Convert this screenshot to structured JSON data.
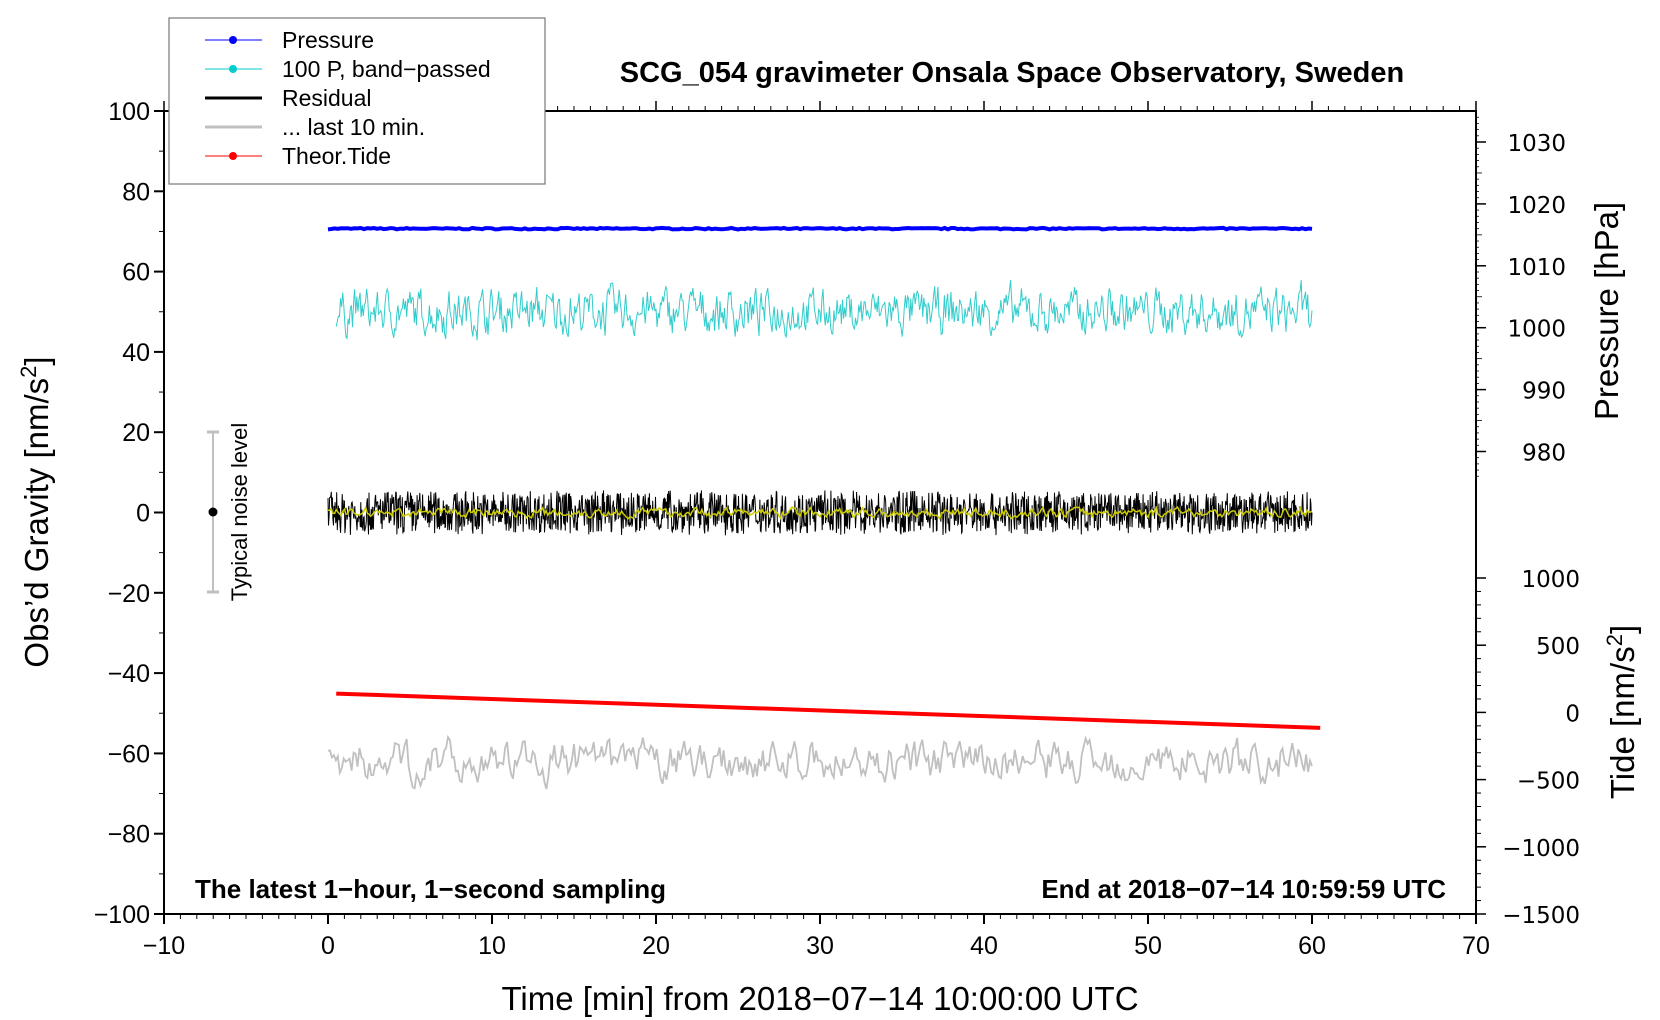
{
  "chart_data": {
    "type": "line",
    "title": "SCG_054 gravimeter Onsala Space Observatory, Sweden",
    "xlabel": "Time [min] from 2018−07−14 10:00:00 UTC",
    "ylabel": "Obs’d Gravity [nm/s",
    "ylabel_sup": "2",
    "ylabel_end": "]",
    "y2label": "Pressure [hPa]",
    "y3label": "Tide [nm/s",
    "y3label_sup": "2",
    "y3label_end": "]",
    "xlim": [
      -10,
      70
    ],
    "ylim": [
      -100,
      100
    ],
    "pressure_ticks": [
      980,
      990,
      1000,
      1010,
      1020,
      1030
    ],
    "tide_ticks": [
      -1500,
      -1000,
      -500,
      0,
      500,
      1000
    ],
    "x_ticks": [
      -10,
      0,
      10,
      20,
      30,
      40,
      50,
      60,
      70
    ],
    "y_ticks": [
      -100,
      -80,
      -60,
      -40,
      -20,
      0,
      20,
      40,
      60,
      80,
      100
    ],
    "x_tick_labels": [
      "−10",
      "0",
      "10",
      "20",
      "30",
      "40",
      "50",
      "60",
      "70"
    ],
    "y_tick_labels": [
      "−100",
      "−80",
      "−60",
      "−40",
      "−20",
      "0",
      "20",
      "40",
      "60",
      "80",
      "100"
    ],
    "tide_tick_labels": [
      "−1500",
      "−1000",
      "−500",
      "0",
      "500",
      "1000"
    ],
    "legend": {
      "placement": "top-left",
      "entries": [
        {
          "label": "Pressure",
          "color": "#0000ff",
          "marker": true
        },
        {
          "label": "100 P, band−passed",
          "color": "#00cccc",
          "marker": true
        },
        {
          "label": "Residual",
          "color": "#000000",
          "marker": false
        },
        {
          "label": "... last 10 min.",
          "color": "#c0c0c0",
          "marker": false
        },
        {
          "label": "Theor.Tide",
          "color": "#ff0000",
          "marker": true
        }
      ]
    },
    "series": [
      {
        "name": "Pressure",
        "axis": "pressure_hPa",
        "x_range": [
          0,
          60
        ],
        "mean": 1016,
        "noise": 0.1,
        "color": "#0000ff"
      },
      {
        "name": "100 P, band-passed",
        "axis": "gravity",
        "x_range": [
          0.5,
          60
        ],
        "mean": 50,
        "noise_amplitude": 4,
        "color": "#33cccc"
      },
      {
        "name": "Residual",
        "axis": "gravity",
        "x_range": [
          0,
          60
        ],
        "mean": 0,
        "noise_amplitude": 4.5,
        "color": "#000000"
      },
      {
        "name": "Residual smoothed",
        "axis": "gravity",
        "x_range": [
          0,
          60
        ],
        "mean": 0,
        "noise_amplitude": 0.8,
        "color": "#cccc00"
      },
      {
        "name": "... last 10 min.",
        "axis": "gravity",
        "x_range": [
          0,
          60
        ],
        "mean": -62,
        "noise_amplitude": 3.5,
        "color": "#c0c0c0"
      },
      {
        "name": "Theor.Tide",
        "axis": "tide",
        "x": [
          0.5,
          60.5
        ],
        "y": [
          140,
          -115
        ],
        "color": "#ff0000"
      }
    ],
    "noise_level": {
      "label": "Typical noise level",
      "range": [
        -20,
        20
      ],
      "center": 0
    },
    "annotations": {
      "left": "The latest 1−hour, 1−second sampling",
      "right": "End at 2018−07−14 10:59:59 UTC"
    }
  }
}
